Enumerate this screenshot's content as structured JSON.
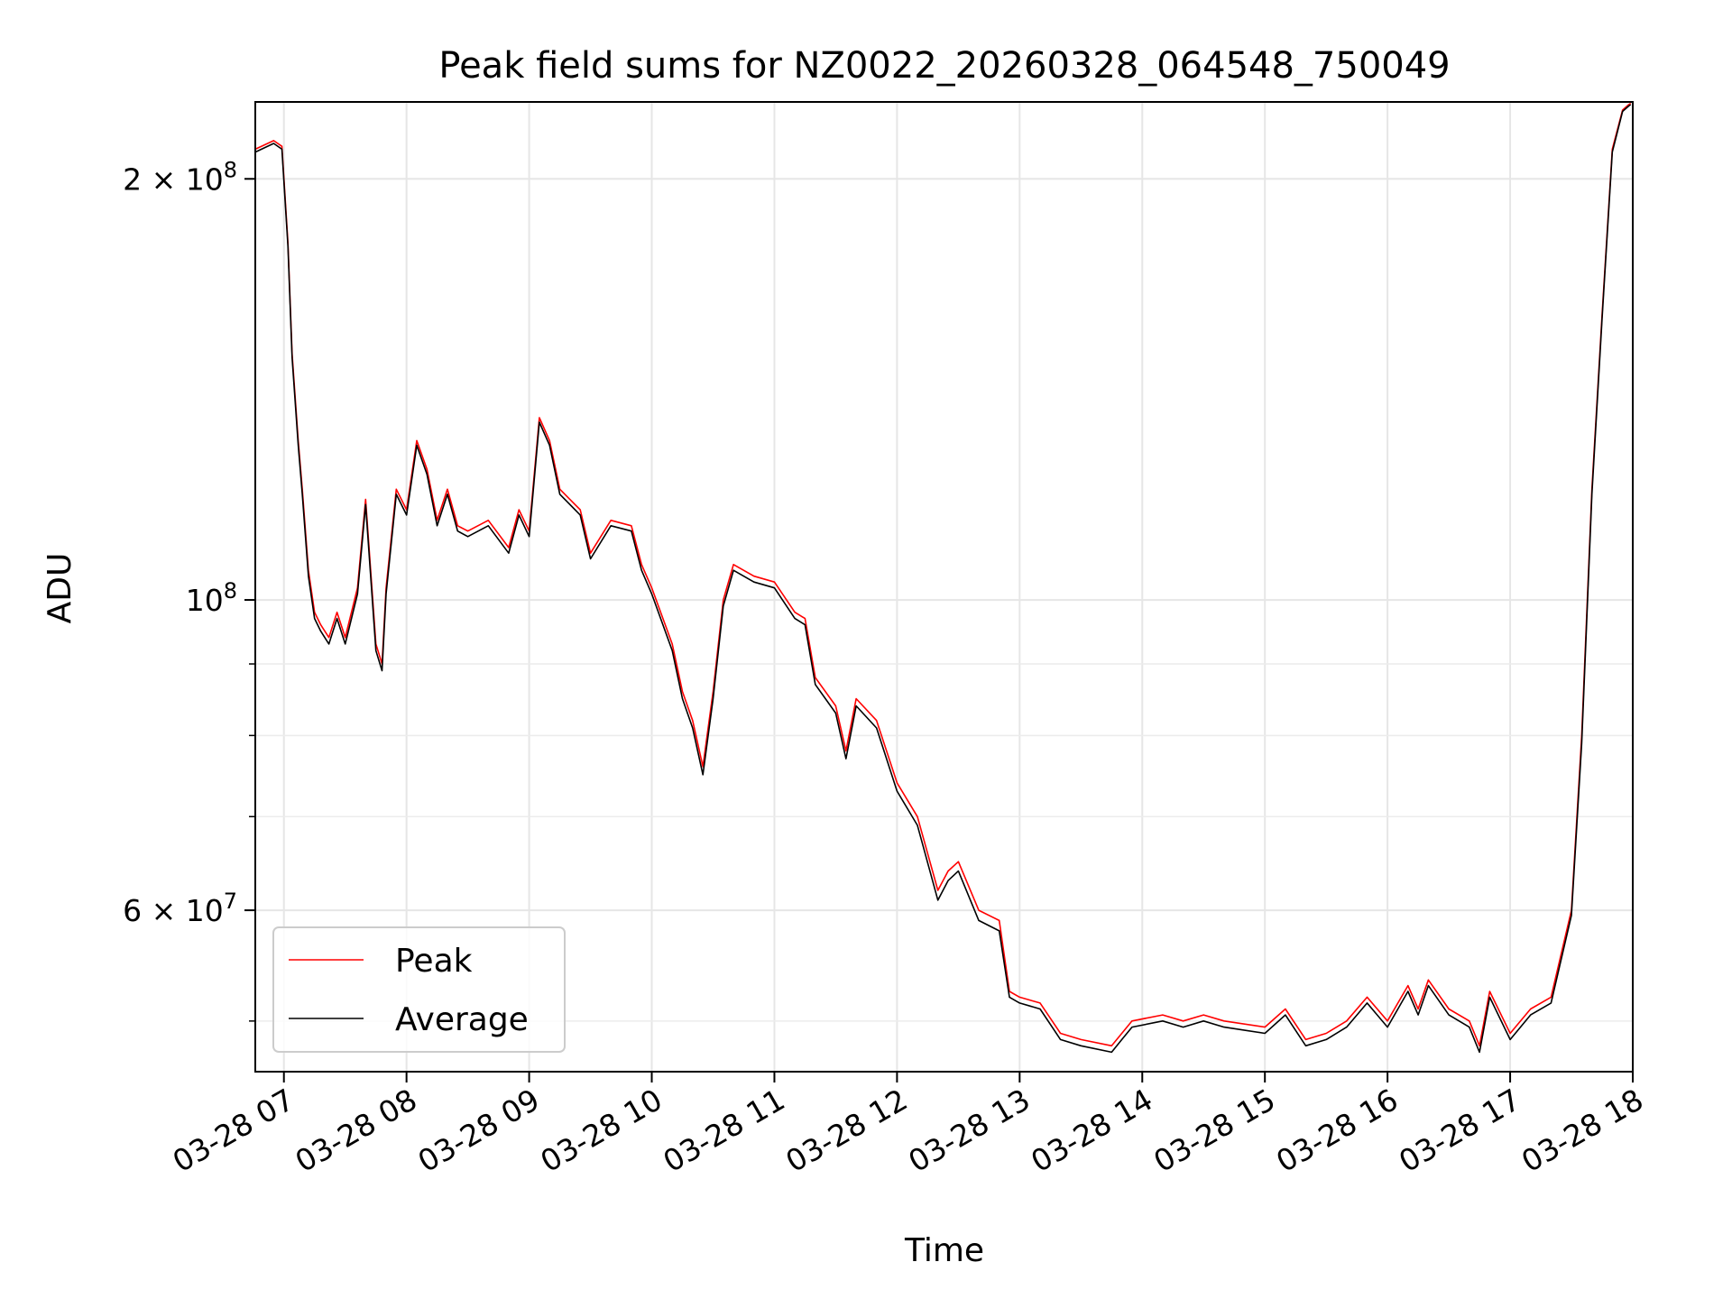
{
  "chart_data": {
    "type": "line",
    "title": "Peak field sums for NZ0022_20260328_064548_750049",
    "xlabel": "Time",
    "ylabel": "ADU",
    "yscale": "log",
    "grid": true,
    "legend_position": "lower-left",
    "xlim": [
      "2026-03-28 06:46",
      "2026-03-28 18:00"
    ],
    "ylim": [
      46000000,
      227000000
    ],
    "x_ticks": [
      {
        "value": "2026-03-28 07:00",
        "label": "03-28 07"
      },
      {
        "value": "2026-03-28 08:00",
        "label": "03-28 08"
      },
      {
        "value": "2026-03-28 09:00",
        "label": "03-28 09"
      },
      {
        "value": "2026-03-28 10:00",
        "label": "03-28 10"
      },
      {
        "value": "2026-03-28 11:00",
        "label": "03-28 11"
      },
      {
        "value": "2026-03-28 12:00",
        "label": "03-28 12"
      },
      {
        "value": "2026-03-28 13:00",
        "label": "03-28 13"
      },
      {
        "value": "2026-03-28 14:00",
        "label": "03-28 14"
      },
      {
        "value": "2026-03-28 15:00",
        "label": "03-28 15"
      },
      {
        "value": "2026-03-28 16:00",
        "label": "03-28 16"
      },
      {
        "value": "2026-03-28 17:00",
        "label": "03-28 17"
      },
      {
        "value": "2026-03-28 18:00",
        "label": "03-28 18"
      }
    ],
    "y_major_ticks": [
      {
        "value": 200000000,
        "mantissa": "2",
        "exponent": "8"
      },
      {
        "value": 100000000,
        "mantissa": "",
        "exponent": "8"
      },
      {
        "value": 60000000,
        "mantissa": "6",
        "exponent": "7"
      }
    ],
    "y_minor_ticks": [
      50000000,
      70000000,
      80000000,
      90000000
    ],
    "x": [
      "06:46",
      "06:55",
      "06:59",
      "07:02",
      "07:04",
      "07:07",
      "07:09",
      "07:12",
      "07:15",
      "07:18",
      "07:22",
      "07:26",
      "07:30",
      "07:36",
      "07:40",
      "07:45",
      "07:48",
      "07:50",
      "07:55",
      "08:00",
      "08:05",
      "08:10",
      "08:15",
      "08:20",
      "08:25",
      "08:30",
      "08:40",
      "08:50",
      "08:55",
      "09:00",
      "09:05",
      "09:10",
      "09:15",
      "09:25",
      "09:30",
      "09:40",
      "09:50",
      "09:55",
      "10:00",
      "10:10",
      "10:15",
      "10:20",
      "10:25",
      "10:30",
      "10:35",
      "10:40",
      "10:50",
      "11:00",
      "11:10",
      "11:15",
      "11:20",
      "11:30",
      "11:35",
      "11:40",
      "11:50",
      "12:00",
      "12:10",
      "12:20",
      "12:25",
      "12:30",
      "12:40",
      "12:50",
      "12:55",
      "13:00",
      "13:10",
      "13:20",
      "13:30",
      "13:45",
      "13:50",
      "13:55",
      "14:10",
      "14:20",
      "14:30",
      "14:40",
      "15:00",
      "15:10",
      "15:20",
      "15:30",
      "15:40",
      "15:50",
      "16:00",
      "16:10",
      "16:15",
      "16:20",
      "16:30",
      "16:40",
      "16:45",
      "16:50",
      "17:00",
      "17:10",
      "17:20",
      "17:30",
      "17:35",
      "17:40",
      "17:45",
      "17:50",
      "17:55",
      "17:58",
      "17:59"
    ],
    "series": [
      {
        "name": "Peak",
        "color": "#ff0000",
        "values": [
          210000000,
          213000000,
          211000000,
          180000000,
          150000000,
          130000000,
          120000000,
          105000000,
          98000000,
          96000000,
          94000000,
          98000000,
          94000000,
          102000000,
          118000000,
          93000000,
          90000000,
          102000000,
          120000000,
          116000000,
          130000000,
          124000000,
          114000000,
          120000000,
          113000000,
          112000000,
          114000000,
          109000000,
          116000000,
          112000000,
          135000000,
          130000000,
          120000000,
          116000000,
          108000000,
          114000000,
          113000000,
          106000000,
          102000000,
          93000000,
          86000000,
          82000000,
          76000000,
          86000000,
          100000000,
          106000000,
          104000000,
          103000000,
          98000000,
          97000000,
          88000000,
          84000000,
          78000000,
          85000000,
          82000000,
          74000000,
          70000000,
          62000000,
          64000000,
          65000000,
          60000000,
          59000000,
          52500000,
          52000000,
          51500000,
          49000000,
          48500000,
          48000000,
          49000000,
          50000000,
          50500000,
          50000000,
          50500000,
          50000000,
          49500000,
          51000000,
          48500000,
          49000000,
          50000000,
          52000000,
          50000000,
          53000000,
          51000000,
          53500000,
          51000000,
          50000000,
          48000000,
          52500000,
          49000000,
          51000000,
          52000000,
          60000000,
          80000000,
          120000000,
          160000000,
          210000000,
          224000000,
          226000000,
          226500000
        ]
      },
      {
        "name": "Average",
        "color": "#000000",
        "values": [
          209000000,
          212000000,
          210000000,
          179000000,
          149000000,
          129000000,
          119000000,
          104000000,
          97000000,
          95000000,
          93000000,
          97000000,
          93000000,
          101000000,
          117000000,
          92000000,
          89000000,
          101000000,
          119000000,
          115000000,
          129000000,
          123000000,
          113000000,
          119000000,
          112000000,
          111000000,
          113000000,
          108000000,
          115000000,
          111000000,
          134000000,
          129000000,
          119000000,
          115000000,
          107000000,
          113000000,
          112000000,
          105000000,
          101000000,
          92000000,
          85000000,
          81000000,
          75000000,
          85000000,
          99000000,
          105000000,
          103000000,
          102000000,
          97000000,
          96000000,
          87000000,
          83000000,
          77000000,
          84000000,
          81000000,
          73000000,
          69000000,
          61000000,
          63000000,
          64000000,
          59000000,
          58000000,
          52000000,
          51500000,
          51000000,
          48500000,
          48000000,
          47500000,
          48500000,
          49500000,
          50000000,
          49500000,
          50000000,
          49500000,
          49000000,
          50500000,
          48000000,
          48500000,
          49500000,
          51500000,
          49500000,
          52500000,
          50500000,
          53000000,
          50500000,
          49500000,
          47500000,
          52000000,
          48500000,
          50500000,
          51500000,
          59500000,
          79000000,
          119000000,
          159000000,
          209000000,
          223500000,
          225500000,
          226000000
        ]
      }
    ]
  }
}
